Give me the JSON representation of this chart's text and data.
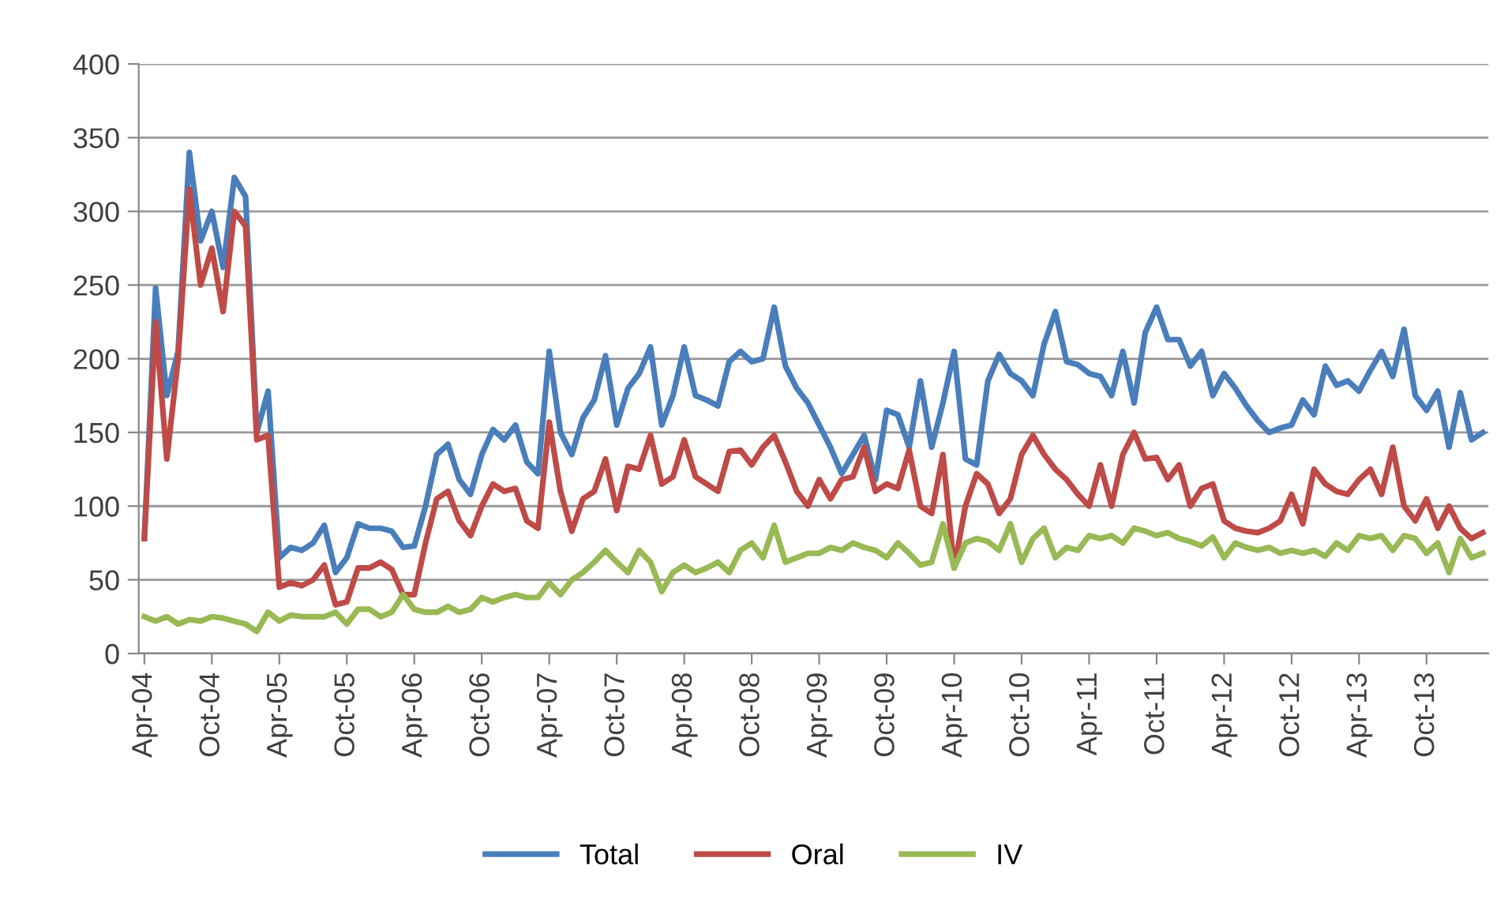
{
  "chart_data": {
    "type": "line",
    "categories": [
      "Apr-04",
      null,
      null,
      null,
      null,
      null,
      "Oct-04",
      null,
      null,
      null,
      null,
      null,
      "Apr-05",
      null,
      null,
      null,
      null,
      null,
      "Oct-05",
      null,
      null,
      null,
      null,
      null,
      "Apr-06",
      null,
      null,
      null,
      null,
      null,
      "Oct-06",
      null,
      null,
      null,
      null,
      null,
      "Apr-07",
      null,
      null,
      null,
      null,
      null,
      "Oct-07",
      null,
      null,
      null,
      null,
      null,
      "Apr-08",
      null,
      null,
      null,
      null,
      null,
      "Oct-08",
      null,
      null,
      null,
      null,
      null,
      "Apr-09",
      null,
      null,
      null,
      null,
      null,
      "Oct-09",
      null,
      null,
      null,
      null,
      null,
      "Apr-10",
      null,
      null,
      null,
      null,
      null,
      "Oct-10",
      null,
      null,
      null,
      null,
      null,
      "Apr-11",
      null,
      null,
      null,
      null,
      null,
      "Oct-11",
      null,
      null,
      null,
      null,
      null,
      "Apr-12",
      null,
      null,
      null,
      null,
      null,
      "Oct-12",
      null,
      null,
      null,
      null,
      null,
      "Apr-13",
      null,
      null,
      null,
      null,
      null,
      "Oct-13",
      null,
      null,
      null,
      null,
      null
    ],
    "series": [
      {
        "name": "Total",
        "color": "#4a7ebb",
        "values": [
          78,
          248,
          175,
          205,
          340,
          280,
          300,
          262,
          323,
          310,
          150,
          178,
          65,
          72,
          70,
          75,
          87,
          55,
          65,
          88,
          85,
          85,
          83,
          72,
          73,
          100,
          135,
          142,
          118,
          108,
          135,
          152,
          145,
          155,
          130,
          122,
          205,
          150,
          135,
          160,
          172,
          202,
          155,
          180,
          190,
          208,
          155,
          175,
          208,
          175,
          172,
          168,
          198,
          205,
          198,
          200,
          235,
          195,
          180,
          170,
          155,
          140,
          122,
          135,
          148,
          118,
          165,
          162,
          140,
          185,
          140,
          170,
          205,
          132,
          128,
          185,
          203,
          190,
          185,
          175,
          210,
          232,
          198,
          196,
          190,
          188,
          175,
          205,
          170,
          218,
          235,
          213,
          213,
          195,
          205,
          175,
          190,
          180,
          168,
          158,
          150,
          153,
          155,
          172,
          162,
          195,
          182,
          185,
          178,
          192,
          205,
          188,
          220,
          175,
          165,
          178,
          140,
          177,
          145,
          150
        ]
      },
      {
        "name": "Oral",
        "color": "#be4b48",
        "values": [
          78,
          225,
          132,
          200,
          315,
          250,
          275,
          232,
          300,
          290,
          145,
          148,
          45,
          48,
          46,
          50,
          60,
          33,
          35,
          58,
          58,
          62,
          57,
          40,
          40,
          75,
          105,
          110,
          90,
          80,
          100,
          115,
          110,
          112,
          90,
          85,
          157,
          110,
          83,
          105,
          110,
          132,
          97,
          127,
          125,
          148,
          115,
          120,
          145,
          120,
          115,
          110,
          137,
          138,
          128,
          140,
          148,
          130,
          110,
          100,
          118,
          105,
          118,
          120,
          140,
          110,
          115,
          112,
          138,
          100,
          95,
          135,
          58,
          100,
          122,
          115,
          95,
          105,
          135,
          148,
          135,
          125,
          118,
          108,
          100,
          128,
          100,
          135,
          150,
          132,
          133,
          118,
          128,
          100,
          112,
          115,
          90,
          85,
          83,
          82,
          85,
          90,
          108,
          88,
          125,
          115,
          110,
          108,
          118,
          125,
          108,
          140,
          100,
          90,
          105,
          85,
          100,
          85,
          78,
          82
        ]
      },
      {
        "name": "IV",
        "color": "#98b954",
        "values": [
          25,
          22,
          25,
          20,
          23,
          22,
          25,
          24,
          22,
          20,
          15,
          28,
          22,
          26,
          25,
          25,
          25,
          28,
          20,
          30,
          30,
          25,
          28,
          40,
          30,
          28,
          28,
          32,
          28,
          30,
          38,
          35,
          38,
          40,
          38,
          38,
          48,
          40,
          50,
          55,
          62,
          70,
          62,
          55,
          70,
          62,
          42,
          55,
          60,
          55,
          58,
          62,
          55,
          70,
          75,
          65,
          87,
          62,
          65,
          68,
          68,
          72,
          70,
          75,
          72,
          70,
          65,
          75,
          68,
          60,
          62,
          88,
          58,
          75,
          78,
          76,
          70,
          88,
          62,
          78,
          85,
          65,
          72,
          70,
          80,
          78,
          80,
          75,
          85,
          83,
          80,
          82,
          78,
          76,
          73,
          79,
          65,
          75,
          72,
          70,
          72,
          68,
          70,
          68,
          70,
          66,
          75,
          70,
          80,
          78,
          80,
          70,
          80,
          78,
          68,
          75,
          55,
          78,
          65,
          68
        ]
      }
    ],
    "ylim": [
      0,
      400
    ],
    "yticks": [
      0,
      50,
      100,
      150,
      200,
      250,
      300,
      350,
      400
    ],
    "grid": "y",
    "legend": "bottom",
    "marker": "none",
    "line_style": "solid"
  }
}
